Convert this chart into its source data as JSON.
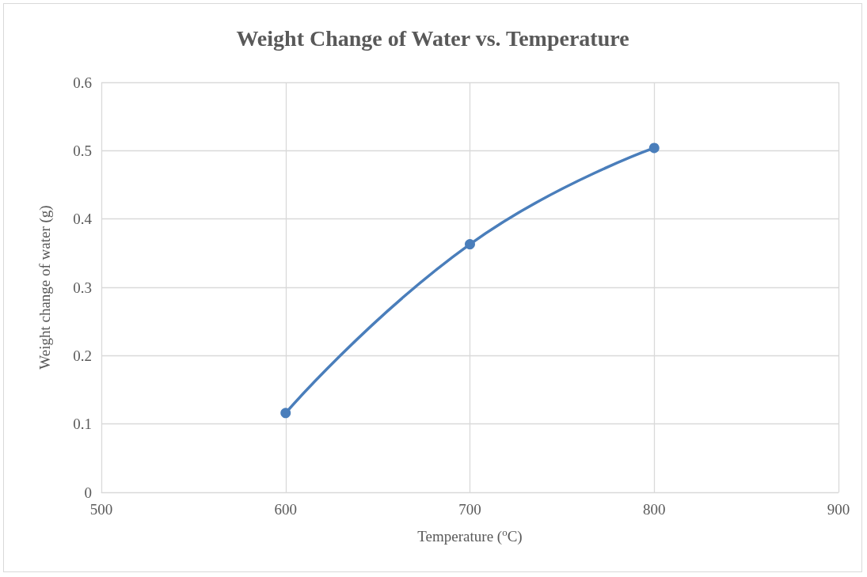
{
  "chart_data": {
    "type": "line",
    "title": "Weight Change of Water vs. Temperature",
    "xlabel": "Temperature ($^{o}$C)",
    "ylabel": "Weight change of water (g)",
    "x": [
      600,
      700,
      800
    ],
    "series": [
      {
        "color": "#4a7ebb",
        "values": [
          0.116,
          0.363,
          0.504
        ]
      }
    ],
    "xlim": [
      500,
      900
    ],
    "xticks": [
      500,
      600,
      700,
      800,
      900
    ],
    "ylim": [
      0,
      0.6
    ],
    "yticks": [
      0,
      0.1,
      0.2,
      0.3,
      0.4,
      0.5,
      0.6
    ],
    "grid": true,
    "marker": "circle",
    "line_style": "solid"
  }
}
